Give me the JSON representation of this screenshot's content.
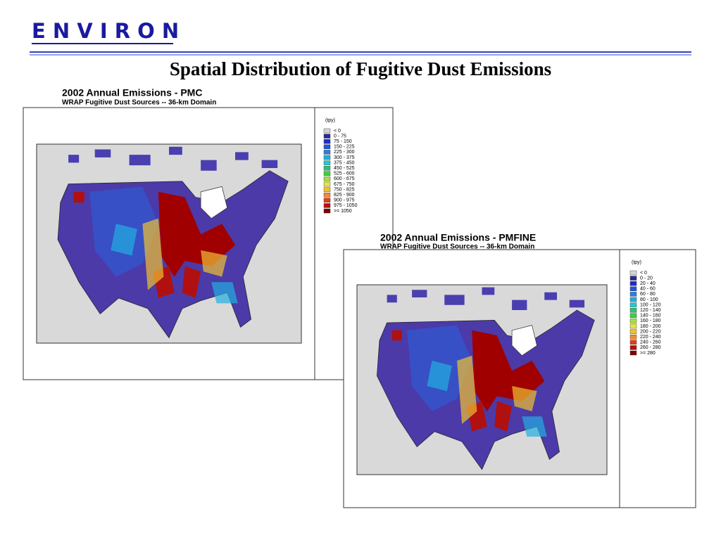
{
  "header": {
    "logo": "E N V I R O N",
    "title": "Spatial Distribution of Fugitive Dust Emissions"
  },
  "panels": [
    {
      "title": "2002 Annual Emissions  - PMC",
      "subtitle": "WRAP Fugitive Dust Sources -- 36-km Domain",
      "legend_title": "(tpy)",
      "legend": [
        {
          "label": "< 0",
          "color": "#d4d4d4"
        },
        {
          "label": "0 - 75",
          "color": "#2e2a8f"
        },
        {
          "label": "75 - 150",
          "color": "#1a30c8"
        },
        {
          "label": "150 - 225",
          "color": "#1f55e0"
        },
        {
          "label": "225 - 300",
          "color": "#2a7fe0"
        },
        {
          "label": "300 - 375",
          "color": "#22aee0"
        },
        {
          "label": "375 - 450",
          "color": "#20cccc"
        },
        {
          "label": "450 - 525",
          "color": "#2fc07a"
        },
        {
          "label": "525 - 600",
          "color": "#3fd040"
        },
        {
          "label": "600 - 675",
          "color": "#a8e040"
        },
        {
          "label": "675 - 750",
          "color": "#e6e640"
        },
        {
          "label": "750 - 825",
          "color": "#f0c030"
        },
        {
          "label": "825 - 900",
          "color": "#f08c30"
        },
        {
          "label": "900 - 975",
          "color": "#e04020"
        },
        {
          "label": "975 - 1050",
          "color": "#b81010"
        },
        {
          "label": ">= 1050",
          "color": "#800000"
        }
      ]
    },
    {
      "title": "2002 Annual Emissions  - PMFINE",
      "subtitle": "WRAP Fugitive Dust Sources -- 36-km Domain",
      "legend_title": "(tpy)",
      "legend": [
        {
          "label": "< 0",
          "color": "#d4d4d4"
        },
        {
          "label": "0 - 20",
          "color": "#2e2a8f"
        },
        {
          "label": "20 - 40",
          "color": "#1a30c8"
        },
        {
          "label": "40 - 60",
          "color": "#1f55e0"
        },
        {
          "label": "60 - 80",
          "color": "#2a7fe0"
        },
        {
          "label": "80 - 100",
          "color": "#22aee0"
        },
        {
          "label": "100 - 120",
          "color": "#20cccc"
        },
        {
          "label": "120 - 140",
          "color": "#2fc07a"
        },
        {
          "label": "140 - 160",
          "color": "#3fd040"
        },
        {
          "label": "160 - 180",
          "color": "#a8e040"
        },
        {
          "label": "180 - 200",
          "color": "#e6e640"
        },
        {
          "label": "200 - 220",
          "color": "#f0c030"
        },
        {
          "label": "220 - 240",
          "color": "#f08c30"
        },
        {
          "label": "240 - 260",
          "color": "#e04020"
        },
        {
          "label": "260 - 280",
          "color": "#b81010"
        },
        {
          "label": ">= 280",
          "color": "#800000"
        }
      ]
    }
  ]
}
